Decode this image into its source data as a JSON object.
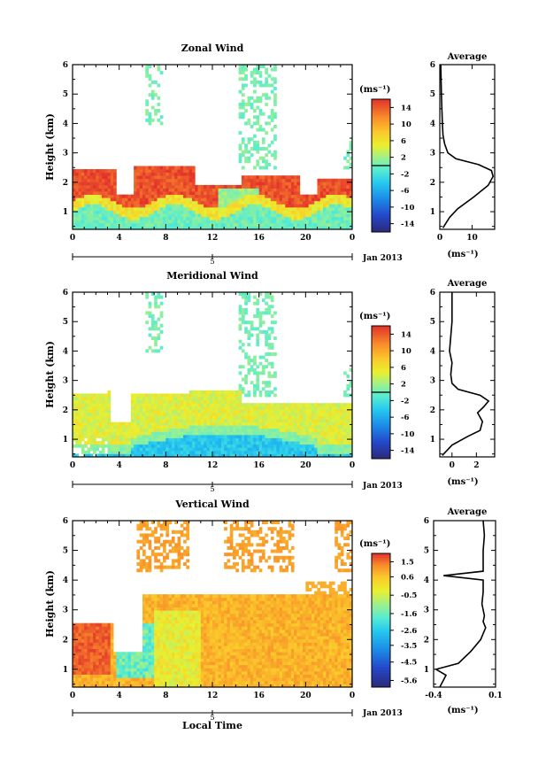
{
  "figure": {
    "xlabel_bottom": "Local Time"
  },
  "chart_data": [
    {
      "type": "heatmap",
      "title": "Zonal Wind",
      "ylabel": "Height (km)",
      "xlabel": "",
      "xlim": [
        0,
        24
      ],
      "ylim": [
        0.4,
        6
      ],
      "xticks": [
        "0",
        "4",
        "8",
        "12",
        "16",
        "20",
        "0"
      ],
      "yticks": [
        "1",
        "2",
        "3",
        "4",
        "5",
        "6"
      ],
      "date_tick": "5",
      "date_label": "Jan 2013",
      "colorbar": {
        "unit": "(ms⁻¹)",
        "ticks": [
          "14",
          "10",
          "6",
          "2",
          "-2",
          "-6",
          "-10",
          "-14"
        ],
        "range": [
          -16,
          16
        ]
      },
      "field_description_points": [
        {
          "t": 0,
          "h_low": 0.5,
          "h_high": 2.4,
          "top_value": 15,
          "low_value": 0
        },
        {
          "t": 3,
          "h_low": 0.5,
          "h_high": 2.2,
          "top_value": 15,
          "low_value": 0
        },
        {
          "t": 6,
          "h_low": 0.5,
          "h_high": 2.5,
          "top_value": 15,
          "low_value": 0
        },
        {
          "t": 10,
          "h_low": 0.5,
          "h_high": 2.5,
          "top_value": 15,
          "low_value": 0
        },
        {
          "t": 15,
          "h_low": 0.5,
          "h_high": 2.2,
          "top_value": 12,
          "low_value": 0
        },
        {
          "t": 20,
          "h_low": 0.5,
          "h_high": 1.6,
          "top_value": 8,
          "low_value": 0
        },
        {
          "t": 24,
          "h_low": 0.5,
          "h_high": 2.3,
          "top_value": 12,
          "low_value": 0
        }
      ],
      "average_profile": {
        "title": "Average",
        "xlabel": "(ms⁻¹)",
        "xlim": [
          0,
          17
        ],
        "xticks": [
          "0",
          "10"
        ],
        "height": [
          0.45,
          0.8,
          1.1,
          1.5,
          1.9,
          2.2,
          2.4,
          2.6,
          2.8,
          3.0,
          3.3,
          3.6,
          4.0,
          5.0,
          6.0
        ],
        "value": [
          1.0,
          3.0,
          5.5,
          10.5,
          15.0,
          16.5,
          16.0,
          12.0,
          5.0,
          2.5,
          1.5,
          1.0,
          0.8,
          0.5,
          0.3
        ]
      }
    },
    {
      "type": "heatmap",
      "title": "Meridional Wind",
      "ylabel": "Height (km)",
      "xlabel": "",
      "xlim": [
        0,
        24
      ],
      "ylim": [
        0.4,
        6
      ],
      "xticks": [
        "0",
        "4",
        "8",
        "12",
        "16",
        "20",
        "0"
      ],
      "yticks": [
        "1",
        "2",
        "3",
        "4",
        "5",
        "6"
      ],
      "date_tick": "5",
      "date_label": "Jan 2013",
      "colorbar": {
        "unit": "(ms⁻¹)",
        "ticks": [
          "14",
          "10",
          "6",
          "2",
          "-2",
          "-6",
          "-10",
          "-14"
        ],
        "range": [
          -16,
          16
        ]
      },
      "average_profile": {
        "title": "Average",
        "xlabel": "(ms⁻¹)",
        "xlim": [
          -1,
          3.5
        ],
        "xticks": [
          "0",
          "2"
        ],
        "height": [
          0.45,
          0.8,
          1.1,
          1.3,
          1.6,
          1.9,
          2.1,
          2.3,
          2.5,
          2.7,
          2.9,
          3.2,
          3.6,
          4.0,
          5.0,
          6.0
        ],
        "value": [
          -0.8,
          0.0,
          1.3,
          2.3,
          2.5,
          2.1,
          2.6,
          3.0,
          2.3,
          0.5,
          0.0,
          -0.1,
          0.0,
          -0.2,
          0.0,
          0.0
        ]
      }
    },
    {
      "type": "heatmap",
      "title": "Vertical Wind",
      "ylabel": "Height (km)",
      "xlabel": "Local Time",
      "xlim": [
        0,
        24
      ],
      "ylim": [
        0.4,
        6
      ],
      "xticks": [
        "0",
        "4",
        "8",
        "12",
        "16",
        "20",
        "0"
      ],
      "yticks": [
        "1",
        "2",
        "3",
        "4",
        "5",
        "6"
      ],
      "date_tick": "5",
      "date_label": "Jan 2013",
      "colorbar": {
        "unit": "(ms⁻¹)",
        "ticks": [
          "1.5",
          "0.6",
          "-0.5",
          "-1.6",
          "-2.6",
          "-3.5",
          "-4.5",
          "-5.6"
        ],
        "range": [
          -6.0,
          2.0
        ]
      },
      "average_profile": {
        "title": "Average",
        "xlabel": "(ms⁻¹)",
        "xlim": [
          -0.4,
          0.1
        ],
        "xticks": [
          "-0.4",
          "0.1"
        ],
        "height": [
          0.4,
          0.8,
          1.0,
          1.2,
          1.6,
          2.0,
          2.4,
          2.6,
          2.8,
          3.2,
          3.6,
          4.0,
          4.15,
          4.3,
          4.6,
          5.0,
          5.5,
          6.0
        ],
        "value": [
          -0.35,
          -0.3,
          -0.38,
          -0.2,
          -0.1,
          -0.02,
          0.02,
          0.0,
          0.01,
          -0.01,
          0.0,
          0.0,
          -0.32,
          0.0,
          0.0,
          0.0,
          0.01,
          0.0
        ]
      }
    }
  ]
}
